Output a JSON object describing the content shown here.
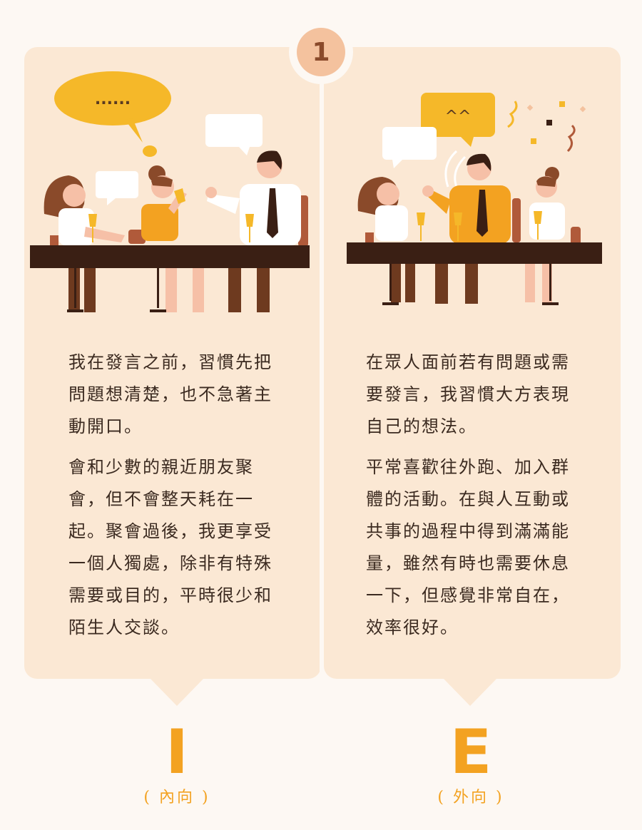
{
  "badge": {
    "number": "1"
  },
  "left": {
    "paragraph1": "我在發言之前，習慣先把問題想清楚，也不急著主動開口。",
    "paragraph2": "會和少數的親近朋友聚會，但不會整天耗在一起。聚會過後，我更享受一個人獨處，除非有特殊需要或目的，平時很少和陌生人交談。",
    "speech_bubble_text": "......",
    "letter": "I",
    "label": "( 內向 )"
  },
  "right": {
    "paragraph1": "在眾人面前若有問題或需要發言，我習慣大方表現自己的想法。",
    "paragraph2": "平常喜歡往外跑、加入群體的活動。在與人互動或共事的過程中得到滿滿能量，雖然有時也需要休息一下，但感覺非常自在，效率很好。",
    "speech_bubble_text": "^^",
    "letter": "E",
    "label": "( 外向 )"
  },
  "colors": {
    "card_bg": "#fbe8d4",
    "accent": "#f3a221",
    "badge": "#f4c29e",
    "table": "#3a1f14"
  }
}
